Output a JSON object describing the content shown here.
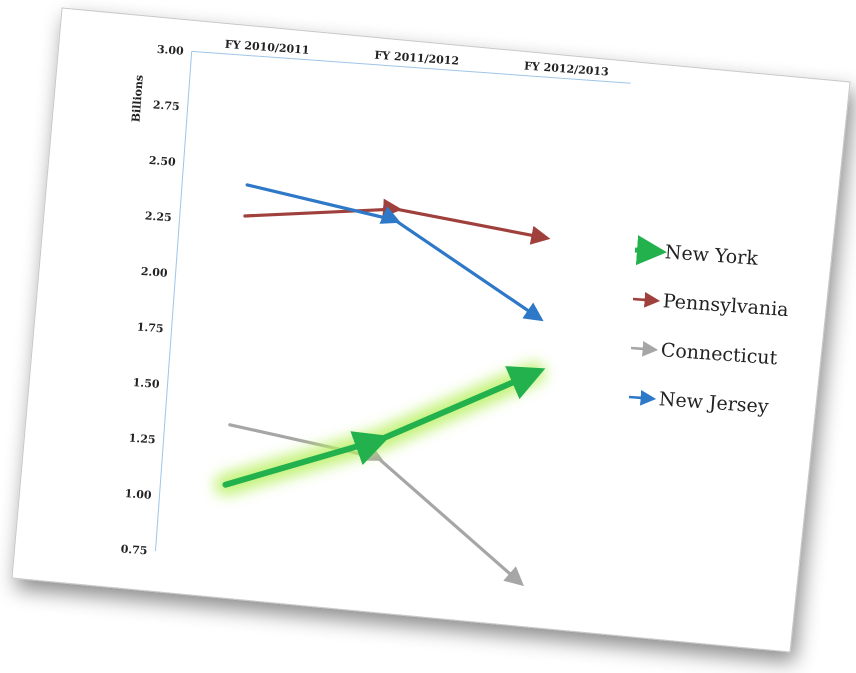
{
  "chart_data": {
    "type": "line",
    "ylabel": "Billions",
    "categories": [
      "FY 2010/2011",
      "FY 2011/2012",
      "FY 2012/2013"
    ],
    "ylim": [
      0.75,
      3.0
    ],
    "yticks": [
      "3.00",
      "2.75",
      "2.50",
      "2.25",
      "2.00",
      "1.75",
      "1.50",
      "1.25",
      "1.00",
      "0.75"
    ],
    "ytick_values": [
      3.0,
      2.75,
      2.5,
      2.25,
      2.0,
      1.75,
      1.5,
      1.25,
      1.0,
      0.75
    ],
    "grid": false,
    "legend_position": "right",
    "series": [
      {
        "name": "New York",
        "values": [
          1.07,
          1.32,
          1.67
        ],
        "color": "#22b14c",
        "highlighted": true
      },
      {
        "name": "Pennsylvania",
        "values": [
          2.28,
          2.36,
          2.28
        ],
        "color": "#a0403c"
      },
      {
        "name": "Connecticut",
        "values": [
          1.34,
          1.24,
          0.73
        ],
        "color": "#a6a6a6"
      },
      {
        "name": "New Jersey",
        "values": [
          2.42,
          2.31,
          1.92
        ],
        "color": "#2e78c8"
      }
    ]
  }
}
